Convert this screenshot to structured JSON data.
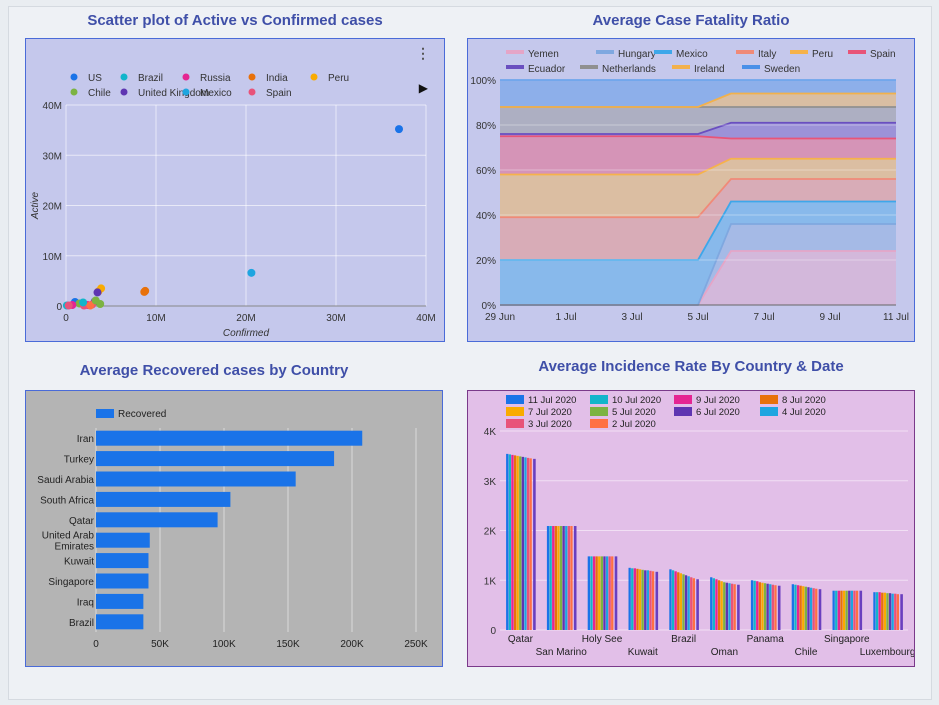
{
  "colors": {
    "title": "#3f4fa8",
    "scatter_bg": "#c5c8ec",
    "area_bg": "#c5c8ec",
    "hbar_bg": "#b4b4b4",
    "vbar_bg": "#e2bfe8",
    "accent_blue": "#1a73e8"
  },
  "icons": {
    "menu": "more-vert-icon",
    "legend_next": "play-arrow-icon"
  },
  "chart_data": [
    {
      "type": "scatter",
      "title": "Scatter plot of Active vs Confirmed cases",
      "xlabel": "Confirmed",
      "ylabel": "Active",
      "xlim": [
        0,
        40
      ],
      "ylim": [
        0,
        40
      ],
      "unit": "M",
      "xticks": [
        "0",
        "10M",
        "20M",
        "30M",
        "40M"
      ],
      "yticks": [
        "0",
        "10M",
        "20M",
        "30M",
        "40M"
      ],
      "grid": true,
      "legend_position": "top",
      "series": [
        {
          "name": "US",
          "color": "#1a73e8",
          "points": [
            [
              37.0,
              35.2
            ]
          ]
        },
        {
          "name": "Brazil",
          "color": "#12b5cb",
          "points": [
            [
              1.9,
              0.7
            ]
          ]
        },
        {
          "name": "Russia",
          "color": "#e52592",
          "points": [
            [
              0.7,
              0.2
            ]
          ]
        },
        {
          "name": "India",
          "color": "#e8710a",
          "points": [
            [
              8.7,
              2.8
            ]
          ]
        },
        {
          "name": "Peru",
          "color": "#f9ab00",
          "points": [
            [
              3.9,
              3.5
            ]
          ]
        },
        {
          "name": "Chile",
          "color": "#7cb342",
          "points": [
            [
              3.8,
              0.4
            ]
          ]
        },
        {
          "name": "United Kingdom",
          "color": "#5e35b1",
          "points": [
            [
              3.5,
              2.7
            ]
          ]
        },
        {
          "name": "Mexico",
          "color": "#1ea5e0",
          "points": [
            [
              20.6,
              6.6
            ]
          ]
        },
        {
          "name": "Spain",
          "color": "#e8537a",
          "points": [
            [
              0.3,
              0.1
            ]
          ]
        }
      ],
      "extra_points": [
        {
          "color": "#1a73e8",
          "x": 1.0,
          "y": 0.8
        },
        {
          "color": "#7cb342",
          "x": 1.5,
          "y": 0.5
        },
        {
          "color": "#e8710a",
          "x": 8.8,
          "y": 3.0
        },
        {
          "color": "#f9ab00",
          "x": 3.6,
          "y": 2.9
        },
        {
          "color": "#e52592",
          "x": 2.4,
          "y": 0.2
        },
        {
          "color": "#5e35b1",
          "x": 3.2,
          "y": 0.9
        },
        {
          "color": "#e8537a",
          "x": 2.9,
          "y": 0.3
        },
        {
          "color": "#e8537a",
          "x": 2.0,
          "y": 0.1
        },
        {
          "color": "#ff7043",
          "x": 2.7,
          "y": 0.1
        },
        {
          "color": "#12b5cb",
          "x": 0.1,
          "y": 0.1
        },
        {
          "color": "#7cb342",
          "x": 3.3,
          "y": 1.1
        }
      ]
    },
    {
      "type": "area",
      "title": "Average Case Fatality Ratio",
      "ylim": [
        0,
        100
      ],
      "yticks": [
        "0%",
        "20%",
        "40%",
        "60%",
        "80%",
        "100%"
      ],
      "x_labels": [
        "29 Jun",
        "1 Jul",
        "3 Jul",
        "5 Jul",
        "7 Jul",
        "9 Jul",
        "11 Jul"
      ],
      "x": [
        0,
        1,
        2,
        3,
        4,
        5,
        6,
        7,
        8,
        9,
        10,
        11,
        12
      ],
      "grid": true,
      "legend_position": "top",
      "series": [
        {
          "name": "Yemen",
          "color": "#e5a5c7",
          "values": [
            0,
            0,
            0,
            0,
            0,
            0,
            0,
            24,
            24,
            24,
            24,
            24,
            24
          ]
        },
        {
          "name": "Hungary",
          "color": "#7fa8e0",
          "values": [
            0,
            0,
            0,
            0,
            0,
            0,
            0,
            36,
            36,
            36,
            36,
            36,
            36
          ]
        },
        {
          "name": "Mexico",
          "color": "#3da7ea",
          "values": [
            20,
            20,
            20,
            20,
            20,
            20,
            20,
            46,
            46,
            46,
            46,
            46,
            46
          ]
        },
        {
          "name": "Italy",
          "color": "#f08a78",
          "values": [
            39,
            39,
            39,
            39,
            39,
            39,
            39,
            56,
            56,
            56,
            56,
            56,
            56
          ]
        },
        {
          "name": "Peru",
          "color": "#f6b24a",
          "values": [
            58,
            58,
            58,
            58,
            58,
            58,
            58,
            65,
            65,
            65,
            65,
            65,
            65
          ]
        },
        {
          "name": "Spain",
          "color": "#e85478",
          "values": [
            75,
            75,
            75,
            75,
            75,
            75,
            75,
            74,
            74,
            74,
            74,
            74,
            74
          ]
        },
        {
          "name": "Ecuador",
          "color": "#6a4fc0",
          "values": [
            76,
            76,
            76,
            76,
            76,
            76,
            76,
            81,
            81,
            81,
            81,
            81,
            81
          ]
        },
        {
          "name": "Netherlands",
          "color": "#909090",
          "values": [
            88,
            88,
            88,
            88,
            88,
            88,
            88,
            88,
            88,
            88,
            88,
            88,
            88
          ]
        },
        {
          "name": "Ireland",
          "color": "#f2b14c",
          "values": [
            88,
            88,
            88,
            88,
            88,
            88,
            88,
            94,
            94,
            94,
            94,
            94,
            94
          ]
        },
        {
          "name": "Sweden",
          "color": "#4a90e8",
          "values": [
            100,
            100,
            100,
            100,
            100,
            100,
            100,
            100,
            100,
            100,
            100,
            100,
            100
          ]
        }
      ]
    },
    {
      "type": "bar",
      "orientation": "horizontal",
      "title": "Average Recovered cases by Country",
      "categories": [
        "Iran",
        "Turkey",
        "Saudi Arabia",
        "South Africa",
        "Qatar",
        "United Arab Emirates",
        "Kuwait",
        "Singapore",
        "Iraq",
        "Brazil"
      ],
      "values": [
        208000,
        186000,
        156000,
        105000,
        95000,
        42000,
        41000,
        41000,
        37000,
        37000
      ],
      "series_name": "Recovered",
      "color": "#1a73e8",
      "xlim": [
        0,
        250000
      ],
      "xticks": [
        "0",
        "50K",
        "100K",
        "150K",
        "200K",
        "250K"
      ],
      "grid": true,
      "legend_position": "top-left"
    },
    {
      "type": "bar",
      "orientation": "vertical",
      "title": "Average Incidence Rate By Country & Date",
      "categories": [
        "Qatar",
        "San Marino",
        "Holy See",
        "Kuwait",
        "Brazil",
        "Oman",
        "Panama",
        "Chile",
        "Singapore",
        "Luxembourg"
      ],
      "ylim": [
        0,
        4000
      ],
      "yticks": [
        "0",
        "1K",
        "2K",
        "3K",
        "4K"
      ],
      "grid": true,
      "legend_position": "top",
      "series": [
        {
          "name": "11 Jul 2020",
          "color": "#1a73e8",
          "values": [
            3540,
            2090,
            1480,
            1250,
            1220,
            1060,
            1000,
            920,
            790,
            760
          ]
        },
        {
          "name": "10 Jul 2020",
          "color": "#12b5cb",
          "values": [
            3530,
            2090,
            1480,
            1240,
            1200,
            1040,
            990,
            910,
            790,
            760
          ]
        },
        {
          "name": "9 Jul 2020",
          "color": "#e52592",
          "values": [
            3520,
            2090,
            1480,
            1240,
            1180,
            1020,
            980,
            900,
            790,
            760
          ]
        },
        {
          "name": "8 Jul 2020",
          "color": "#e8710a",
          "values": [
            3510,
            2090,
            1480,
            1230,
            1160,
            1000,
            960,
            890,
            790,
            750
          ]
        },
        {
          "name": "7 Jul 2020",
          "color": "#f9ab00",
          "values": [
            3500,
            2090,
            1480,
            1220,
            1140,
            980,
            950,
            880,
            790,
            750
          ]
        },
        {
          "name": "5 Jul 2020",
          "color": "#7cb342",
          "values": [
            3490,
            2090,
            1480,
            1210,
            1120,
            960,
            940,
            870,
            790,
            740
          ]
        },
        {
          "name": "6 Jul 2020",
          "color": "#5e35b1",
          "values": [
            3480,
            2090,
            1480,
            1200,
            1100,
            950,
            930,
            860,
            790,
            740
          ]
        },
        {
          "name": "4 Jul 2020",
          "color": "#1ea5e0",
          "values": [
            3470,
            2090,
            1480,
            1200,
            1080,
            940,
            920,
            850,
            790,
            730
          ]
        },
        {
          "name": "3 Jul 2020",
          "color": "#e8537a",
          "values": [
            3460,
            2090,
            1480,
            1190,
            1060,
            930,
            910,
            840,
            790,
            730
          ]
        },
        {
          "name": "2 Jul 2020",
          "color": "#ff7043",
          "values": [
            3450,
            2090,
            1480,
            1180,
            1040,
            920,
            900,
            830,
            790,
            720
          ]
        }
      ],
      "last_bar_color": "#6a3fbf",
      "last_bar_values": [
        3440,
        2090,
        1480,
        1170,
        1020,
        910,
        890,
        820,
        790,
        720
      ]
    }
  ]
}
